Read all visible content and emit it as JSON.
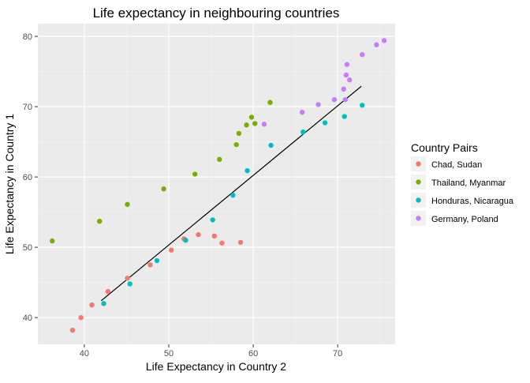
{
  "chart_data": {
    "type": "scatter",
    "title": "Life expectancy in neighbouring countries",
    "xlabel": "Life Expectancy in Country 2",
    "ylabel": "Life Expectancy in Country 1",
    "xlim": [
      34.5,
      76.8
    ],
    "ylim": [
      36.2,
      81.8
    ],
    "x_ticks": [
      40,
      50,
      60,
      70
    ],
    "y_ticks": [
      40,
      50,
      60,
      70,
      80
    ],
    "grid": true,
    "legend_title": "Country Pairs",
    "legend_position": "right",
    "series": [
      {
        "name": "Chad, Sudan",
        "color": "#F8766D",
        "x": [
          38.6,
          39.6,
          40.9,
          42.8,
          45.1,
          47.8,
          50.3,
          51.8,
          53.5,
          55.4,
          56.3,
          58.5
        ],
        "y": [
          38.2,
          40.0,
          41.8,
          43.7,
          45.6,
          47.5,
          49.6,
          51.2,
          51.8,
          51.6,
          50.6,
          50.7
        ]
      },
      {
        "name": "Thailand, Myanmar",
        "color": "#7CAE00",
        "x": [
          36.2,
          41.8,
          45.1,
          49.4,
          53.1,
          56.0,
          58.0,
          58.3,
          59.2,
          59.8,
          60.2,
          62.0
        ],
        "y": [
          50.9,
          53.7,
          56.1,
          58.3,
          60.4,
          62.5,
          64.6,
          66.2,
          67.4,
          68.5,
          67.6,
          70.6
        ]
      },
      {
        "name": "Honduras, Nicaragua",
        "color": "#00BFC4",
        "x": [
          42.3,
          45.4,
          48.6,
          52.0,
          55.2,
          57.6,
          59.3,
          62.1,
          65.9,
          68.5,
          70.8,
          72.9
        ],
        "y": [
          42.0,
          44.8,
          48.1,
          51.0,
          53.9,
          57.4,
          60.9,
          64.5,
          66.4,
          67.7,
          68.6,
          70.2
        ]
      },
      {
        "name": "Germany, Poland",
        "color": "#C77CFF",
        "x": [
          61.3,
          65.8,
          67.7,
          69.6,
          70.7,
          70.9,
          71.0,
          71.1,
          71.4,
          72.9,
          74.6,
          75.5
        ],
        "y": [
          67.5,
          69.2,
          70.3,
          71.0,
          72.5,
          71.0,
          74.5,
          76.0,
          73.8,
          77.4,
          78.8,
          79.4
        ]
      }
    ],
    "trend_line": {
      "color": "#000000",
      "x": [
        42.0,
        72.8
      ],
      "y": [
        42.4,
        72.9
      ]
    }
  }
}
